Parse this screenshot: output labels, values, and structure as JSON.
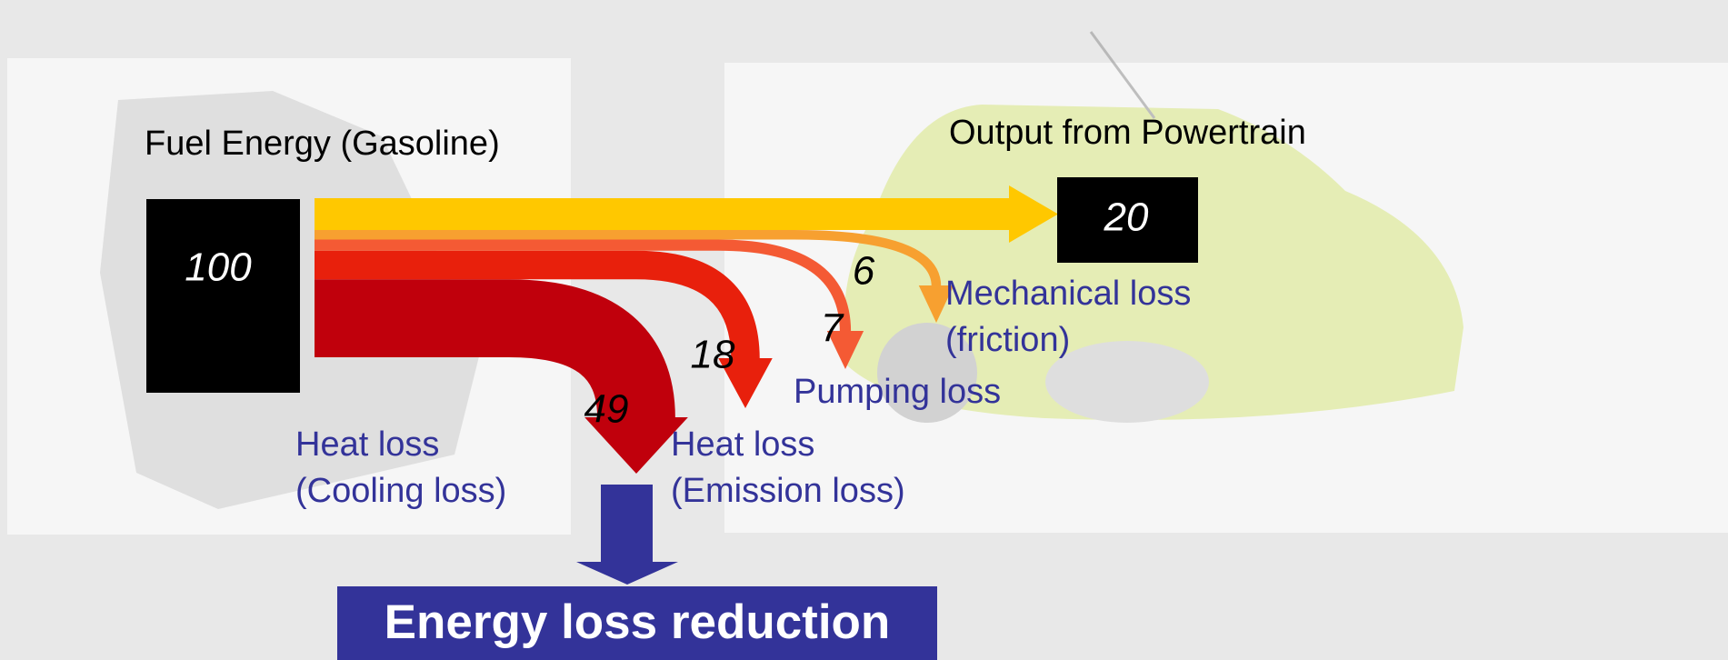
{
  "input": {
    "label": "Fuel Energy (Gasoline)",
    "value": 100
  },
  "flows": [
    {
      "label": [
        "Output from Powertrain"
      ],
      "value": 20,
      "color": "#ffc800"
    },
    {
      "label": [
        "Mechanical loss",
        "(friction)"
      ],
      "value": 6,
      "color": "#f7a030"
    },
    {
      "label": [
        "Pumping loss"
      ],
      "value": 7,
      "color": "#f45a34"
    },
    {
      "label": [
        "Heat loss",
        "(Emission loss)"
      ],
      "value": 18,
      "color": "#e8200c"
    },
    {
      "label": [
        "Heat loss",
        "(Cooling loss)"
      ],
      "value": 49,
      "color": "#c0000c"
    }
  ],
  "callout": "Energy loss reduction"
}
